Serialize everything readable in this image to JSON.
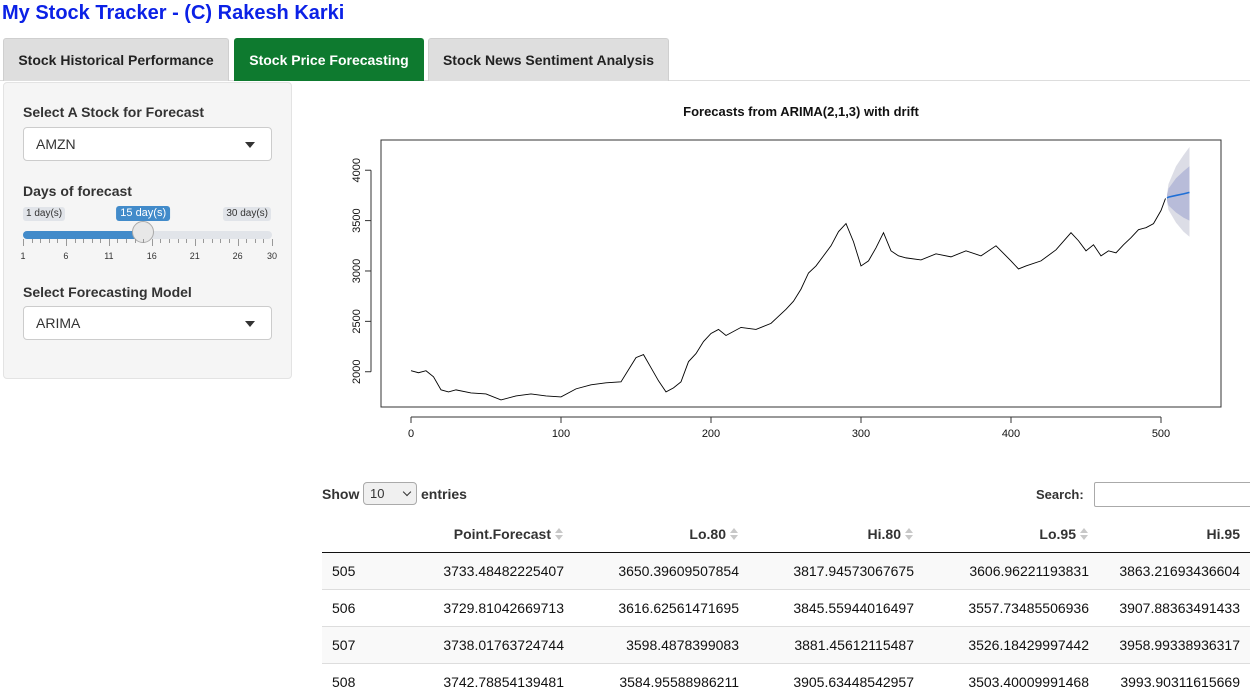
{
  "app": {
    "title": "My Stock Tracker - (C) Rakesh Karki"
  },
  "tabs": [
    {
      "label": "Stock Historical Performance",
      "active": false
    },
    {
      "label": "Stock Price Forecasting",
      "active": true
    },
    {
      "label": "Stock News Sentiment Analysis",
      "active": false
    }
  ],
  "sidebar": {
    "stock_label": "Select A Stock for Forecast",
    "stock_value": "AMZN",
    "days_label": "Days of forecast",
    "days": {
      "min_label": "1 day(s)",
      "max_label": "30 day(s)",
      "value_label": "15 day(s)",
      "min": 1,
      "max": 30,
      "value": 15,
      "ticks": [
        "1",
        "6",
        "11",
        "16",
        "21",
        "26",
        "30"
      ]
    },
    "model_label": "Select Forecasting Model",
    "model_value": "ARIMA"
  },
  "chart_data": {
    "type": "line",
    "title": "Forecasts from ARIMA(2,1,3) with drift",
    "xlabel": "",
    "ylabel": "",
    "xlim": [
      -20,
      540
    ],
    "ylim": [
      1650,
      4300
    ],
    "xticks": [
      0,
      100,
      200,
      300,
      400,
      500
    ],
    "yticks": [
      2000,
      2500,
      3000,
      3500,
      4000
    ],
    "grid": false,
    "history": {
      "x": [
        0,
        5,
        10,
        15,
        20,
        25,
        30,
        40,
        50,
        60,
        70,
        80,
        90,
        100,
        110,
        120,
        130,
        140,
        150,
        155,
        160,
        165,
        170,
        175,
        180,
        185,
        190,
        195,
        200,
        205,
        210,
        220,
        230,
        240,
        245,
        250,
        255,
        260,
        265,
        270,
        275,
        280,
        285,
        290,
        295,
        300,
        305,
        310,
        315,
        320,
        325,
        330,
        340,
        350,
        360,
        370,
        380,
        390,
        400,
        405,
        410,
        420,
        430,
        440,
        445,
        450,
        455,
        460,
        465,
        470,
        475,
        480,
        485,
        490,
        495,
        500,
        503
      ],
      "y": [
        2010,
        1990,
        2010,
        1950,
        1820,
        1800,
        1820,
        1790,
        1780,
        1720,
        1760,
        1780,
        1760,
        1750,
        1830,
        1870,
        1890,
        1900,
        2140,
        2170,
        2040,
        1910,
        1800,
        1840,
        1900,
        2100,
        2180,
        2300,
        2380,
        2420,
        2360,
        2440,
        2420,
        2480,
        2550,
        2620,
        2700,
        2820,
        2980,
        3050,
        3150,
        3250,
        3390,
        3470,
        3290,
        3050,
        3100,
        3230,
        3380,
        3200,
        3150,
        3130,
        3110,
        3170,
        3140,
        3200,
        3150,
        3250,
        3100,
        3020,
        3050,
        3100,
        3210,
        3380,
        3300,
        3200,
        3260,
        3150,
        3200,
        3180,
        3260,
        3330,
        3410,
        3430,
        3470,
        3600,
        3720
      ]
    },
    "forecast": {
      "x": [
        504,
        505,
        510,
        515,
        519
      ],
      "point": [
        3725,
        3733.48,
        3750,
        3765,
        3780
      ],
      "lo80": [
        3700,
        3650.4,
        3580,
        3530,
        3500
      ],
      "hi80": [
        3750,
        3817.95,
        3920,
        3990,
        4040
      ],
      "lo95": [
        3690,
        3606.96,
        3480,
        3390,
        3340
      ],
      "hi95": [
        3760,
        3863.22,
        4040,
        4150,
        4230
      ]
    },
    "colors": {
      "line": "#000000",
      "forecast": "#1f6fd6",
      "band80": "#b8bcd9",
      "band95": "#dcdde6"
    }
  },
  "table": {
    "show_label": "Show",
    "entries_label": "entries",
    "length_value": "10",
    "search_label": "Search:",
    "search_value": "",
    "columns": [
      "",
      "Point.Forecast",
      "Lo.80",
      "Hi.80",
      "Lo.95",
      "Hi.95"
    ],
    "rows": [
      [
        "505",
        "3733.48482225407",
        "3650.39609507854",
        "3817.94573067675",
        "3606.96221193831",
        "3863.21693436604"
      ],
      [
        "506",
        "3729.81042669713",
        "3616.62561471695",
        "3845.55944016497",
        "3557.73485506936",
        "3907.88363491433"
      ],
      [
        "507",
        "3738.01763724744",
        "3598.4878399083",
        "3881.45612115487",
        "3526.18429997442",
        "3958.99338936317"
      ],
      [
        "508",
        "3742.78854139481",
        "3584.95588986211",
        "3905.63448542957",
        "3503.40009991468",
        "3993.90311615669"
      ]
    ]
  }
}
